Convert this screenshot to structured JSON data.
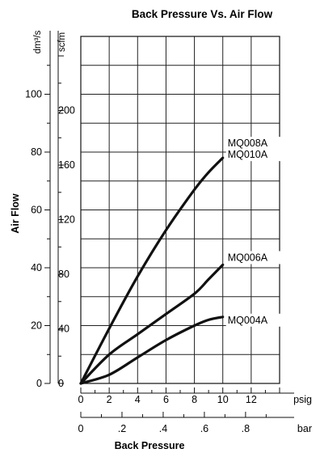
{
  "chart_data": {
    "type": "line",
    "title": "Back Pressure Vs. Air Flow",
    "xlabel": "Back Pressure",
    "ylabel": "Air Flow",
    "x_units": {
      "primary": "psig",
      "secondary": "bar"
    },
    "y_units": {
      "primary": "dm³/s",
      "secondary": "scfm"
    },
    "xlim_psig": [
      0,
      14
    ],
    "ylim_dm3s": [
      0,
      120
    ],
    "x_ticks_psig": [
      "0",
      "2",
      "4",
      "6",
      "8",
      "10",
      "12"
    ],
    "x_ticks_bar": [
      "0",
      ".2",
      ".4",
      ".6",
      ".8"
    ],
    "y_ticks_dm3s": [
      "0",
      "20",
      "40",
      "60",
      "80",
      "100"
    ],
    "y_ticks_scfm": [
      "0",
      "40",
      "80",
      "120",
      "160",
      "200"
    ],
    "grid": true,
    "series": [
      {
        "name": "MQ008A",
        "name2": "MQ010A",
        "x": [
          0,
          2,
          4,
          6,
          8,
          9,
          10
        ],
        "y": [
          0,
          19,
          37,
          53,
          67,
          73,
          78
        ]
      },
      {
        "name": "MQ006A",
        "x": [
          0,
          2,
          4,
          6,
          8,
          9,
          10
        ],
        "y": [
          0,
          10,
          17,
          24,
          31,
          36,
          41
        ]
      },
      {
        "name": "MQ004A",
        "x": [
          0,
          2,
          4,
          6,
          8,
          9,
          10
        ],
        "y": [
          0,
          3,
          9,
          15,
          20,
          22,
          23
        ]
      }
    ]
  }
}
